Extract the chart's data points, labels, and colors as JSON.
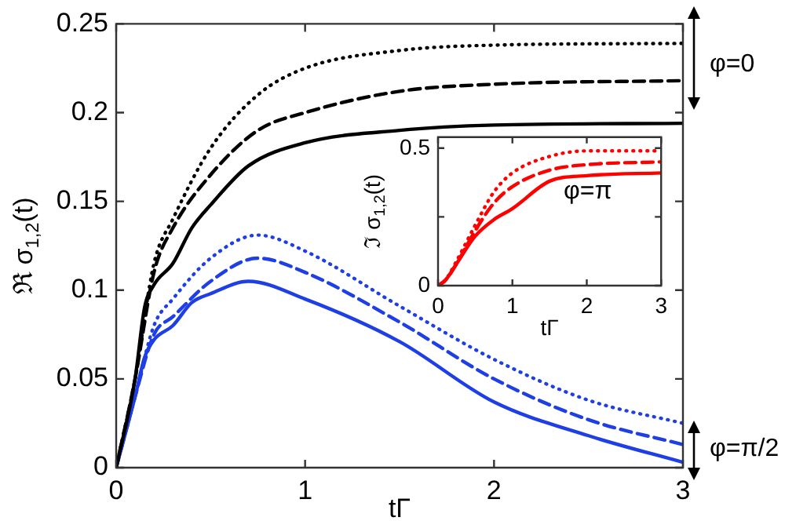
{
  "chart_data": [
    {
      "type": "line",
      "xlabel": "tΓ",
      "ylabel": "ℜ σ$_{1,2}$(t)",
      "xlim": [
        0,
        3
      ],
      "ylim": [
        0,
        0.25
      ],
      "xticks": [
        0,
        1,
        2,
        3
      ],
      "yticks": [
        0,
        0.05,
        0.1,
        0.15,
        0.2,
        0.25
      ],
      "grid": false,
      "legend": false,
      "marker": "none",
      "series": [
        {
          "color": "#000000",
          "line_style": "solid",
          "x": [
            0,
            0.1,
            0.15,
            0.2,
            0.3,
            0.4,
            0.5,
            0.7,
            1,
            1.5,
            2,
            3
          ],
          "values": [
            0,
            0.05,
            0.09,
            0.103,
            0.115,
            0.135,
            0.148,
            0.17,
            0.183,
            0.19,
            0.193,
            0.194
          ]
        },
        {
          "color": "#000000",
          "line_style": "dashed",
          "x": [
            0,
            0.1,
            0.2,
            0.3,
            0.5,
            0.75,
            1,
            1.5,
            2,
            3
          ],
          "values": [
            0,
            0.05,
            0.11,
            0.135,
            0.165,
            0.19,
            0.2,
            0.212,
            0.216,
            0.218
          ]
        },
        {
          "color": "#000000",
          "line_style": "dotted",
          "x": [
            0,
            0.1,
            0.2,
            0.3,
            0.5,
            0.75,
            1,
            1.5,
            2,
            3
          ],
          "values": [
            0,
            0.05,
            0.115,
            0.14,
            0.18,
            0.21,
            0.225,
            0.235,
            0.238,
            0.239
          ]
        },
        {
          "color": "#1f3fe6",
          "line_style": "solid",
          "x": [
            0,
            0.1,
            0.15,
            0.2,
            0.3,
            0.4,
            0.5,
            0.7,
            1,
            1.5,
            2,
            2.5,
            3
          ],
          "values": [
            0,
            0.04,
            0.062,
            0.072,
            0.08,
            0.093,
            0.098,
            0.105,
            0.095,
            0.071,
            0.037,
            0.018,
            0.003
          ]
        },
        {
          "color": "#1f3fe6",
          "line_style": "dashed",
          "x": [
            0,
            0.1,
            0.2,
            0.3,
            0.5,
            0.75,
            1,
            1.5,
            2,
            2.5,
            3
          ],
          "values": [
            0,
            0.04,
            0.075,
            0.085,
            0.105,
            0.118,
            0.11,
            0.082,
            0.05,
            0.027,
            0.013
          ]
        },
        {
          "color": "#1f3fe6",
          "line_style": "dotted",
          "x": [
            0,
            0.1,
            0.2,
            0.3,
            0.5,
            0.75,
            1,
            1.5,
            2,
            2.5,
            3
          ],
          "values": [
            0,
            0.04,
            0.08,
            0.095,
            0.118,
            0.131,
            0.122,
            0.091,
            0.061,
            0.038,
            0.025
          ]
        }
      ],
      "annotations": [
        "φ=0",
        "φ=π/2"
      ]
    },
    {
      "type": "line",
      "xlabel": "tΓ",
      "ylabel": "ℑ σ$_{1,2}$(t)",
      "xlim": [
        0,
        3
      ],
      "ylim": [
        0,
        0.54
      ],
      "xticks": [
        0,
        1,
        2,
        3
      ],
      "yticks": [
        0,
        {
          "value": 0.25,
          "label": null
        },
        0.5
      ],
      "grid": false,
      "legend": false,
      "marker": "none",
      "series": [
        {
          "color": "#ff0000",
          "line_style": "solid",
          "x": [
            0,
            0.1,
            0.25,
            0.5,
            0.75,
            1,
            1.5,
            2,
            3
          ],
          "values": [
            0,
            0.02,
            0.08,
            0.18,
            0.24,
            0.28,
            0.38,
            0.4,
            0.41
          ]
        },
        {
          "color": "#ff0000",
          "line_style": "dashed",
          "x": [
            0,
            0.1,
            0.25,
            0.5,
            0.75,
            1,
            1.5,
            2,
            3
          ],
          "values": [
            0,
            0.02,
            0.08,
            0.2,
            0.3,
            0.36,
            0.42,
            0.44,
            0.45
          ]
        },
        {
          "color": "#ff0000",
          "line_style": "dotted",
          "x": [
            0,
            0.1,
            0.25,
            0.5,
            0.75,
            1,
            1.5,
            2,
            3
          ],
          "values": [
            0,
            0.02,
            0.09,
            0.22,
            0.34,
            0.41,
            0.47,
            0.49,
            0.49
          ]
        }
      ],
      "annotations": [
        "φ=π"
      ]
    }
  ]
}
